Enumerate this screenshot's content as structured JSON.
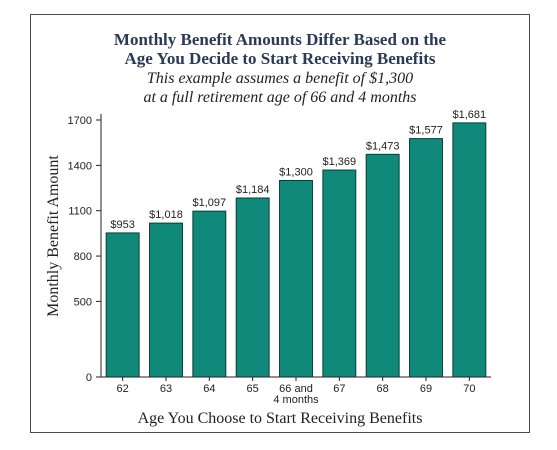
{
  "chart_data": {
    "type": "bar",
    "title": [
      "Monthly Benefit Amounts Differ Based on the",
      "Age You Decide to Start Receiving Benefits"
    ],
    "subtitle": [
      "This example assumes a benefit of $1,300",
      "at a full retirement age of 66 and 4 months"
    ],
    "xlabel": "Age You Choose to Start Receiving Benefits",
    "ylabel": "Monthly Benefit Amount",
    "categories": [
      [
        "62"
      ],
      [
        "63"
      ],
      [
        "64"
      ],
      [
        "65"
      ],
      [
        "66 and",
        "4 months"
      ],
      [
        "67"
      ],
      [
        "68"
      ],
      [
        "69"
      ],
      [
        "70"
      ]
    ],
    "values": [
      953,
      1018,
      1097,
      1184,
      1300,
      1369,
      1473,
      1577,
      1681
    ],
    "value_labels": [
      "$953",
      "$1,018",
      "$1,097",
      "$1,184",
      "$1,300",
      "$1,369",
      "$1,473",
      "$1,577",
      "$1,681"
    ],
    "yticks": [
      0,
      500,
      800,
      1100,
      1400,
      1700
    ],
    "ytick_labels": [
      "0",
      "500",
      "800",
      "1100",
      "1400",
      "1700"
    ],
    "ylim": [
      0,
      1700
    ],
    "grid": false,
    "bar_color": "#0f8a7a",
    "bar_edge_color": "#0a3d36"
  }
}
